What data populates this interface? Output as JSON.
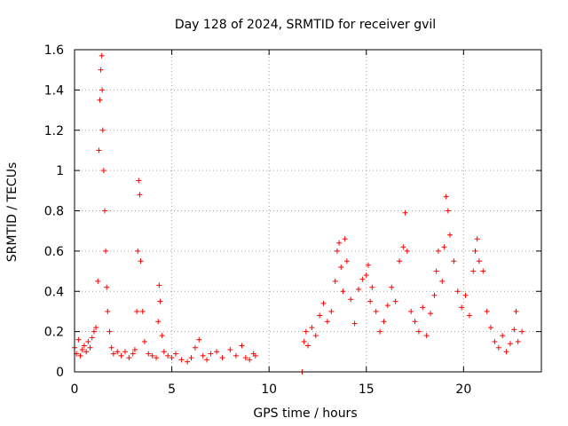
{
  "chart_data": {
    "type": "scatter",
    "title": "Day 128 of 2024, SRMTID for receiver gvil",
    "xlabel": "GPS time / hours",
    "ylabel": "SRMTID / TECUs",
    "xlim": [
      0,
      24
    ],
    "ylim": [
      0,
      1.6
    ],
    "xticks": [
      0,
      5,
      10,
      15,
      20
    ],
    "xtick_labels": [
      "0",
      "5",
      "10",
      "15",
      "20"
    ],
    "yticks": [
      0,
      0.2,
      0.4,
      0.6,
      0.8,
      1,
      1.2,
      1.4,
      1.6
    ],
    "ytick_labels": [
      "0",
      "0.2",
      "0.4",
      "0.6",
      "0.8",
      "1",
      "1.2",
      "1.4",
      "1.6"
    ],
    "grid": true,
    "marker": "plus",
    "color": "#ff0000",
    "series": [
      {
        "name": "SRMTID",
        "x": [
          0.0,
          0.1,
          0.2,
          0.3,
          0.4,
          0.5,
          0.6,
          0.7,
          0.8,
          0.9,
          1.0,
          1.1,
          1.2,
          1.25,
          1.3,
          1.35,
          1.4,
          1.42,
          1.45,
          1.5,
          1.55,
          1.6,
          1.65,
          1.7,
          1.8,
          1.9,
          2.0,
          2.2,
          2.4,
          2.6,
          2.8,
          3.0,
          3.1,
          3.2,
          3.25,
          3.3,
          3.35,
          3.4,
          3.5,
          3.6,
          3.8,
          4.0,
          4.2,
          4.3,
          4.35,
          4.4,
          4.5,
          4.6,
          4.8,
          5.0,
          5.2,
          5.5,
          5.8,
          6.0,
          6.2,
          6.4,
          6.6,
          6.8,
          7.0,
          7.3,
          7.6,
          8.0,
          8.3,
          8.6,
          8.8,
          9.0,
          9.2,
          9.3,
          11.7,
          11.8,
          11.9,
          12.0,
          12.2,
          12.4,
          12.6,
          12.8,
          13.0,
          13.2,
          13.4,
          13.5,
          13.6,
          13.7,
          13.8,
          13.9,
          14.0,
          14.2,
          14.4,
          14.6,
          14.8,
          15.0,
          15.1,
          15.2,
          15.3,
          15.5,
          15.7,
          15.9,
          16.1,
          16.3,
          16.5,
          16.7,
          16.9,
          17.0,
          17.1,
          17.3,
          17.5,
          17.7,
          17.9,
          18.1,
          18.3,
          18.5,
          18.6,
          18.7,
          18.9,
          19.0,
          19.1,
          19.2,
          19.3,
          19.5,
          19.7,
          19.9,
          20.1,
          20.3,
          20.5,
          20.6,
          20.7,
          20.8,
          21.0,
          21.2,
          21.4,
          21.6,
          21.8,
          22.0,
          22.2,
          22.4,
          22.6,
          22.7,
          22.8,
          23.0
        ],
        "y": [
          0.12,
          0.09,
          0.16,
          0.08,
          0.11,
          0.13,
          0.1,
          0.15,
          0.12,
          0.17,
          0.2,
          0.22,
          0.45,
          1.1,
          1.35,
          1.5,
          1.57,
          1.4,
          1.2,
          1.0,
          0.8,
          0.6,
          0.42,
          0.3,
          0.2,
          0.12,
          0.09,
          0.1,
          0.08,
          0.1,
          0.07,
          0.09,
          0.11,
          0.3,
          0.6,
          0.95,
          0.88,
          0.55,
          0.3,
          0.15,
          0.09,
          0.08,
          0.07,
          0.25,
          0.43,
          0.35,
          0.18,
          0.1,
          0.08,
          0.07,
          0.09,
          0.06,
          0.05,
          0.07,
          0.12,
          0.16,
          0.08,
          0.06,
          0.09,
          0.1,
          0.07,
          0.11,
          0.08,
          0.13,
          0.07,
          0.06,
          0.09,
          0.08,
          0.0,
          0.15,
          0.2,
          0.13,
          0.22,
          0.18,
          0.28,
          0.34,
          0.25,
          0.3,
          0.45,
          0.6,
          0.64,
          0.52,
          0.4,
          0.66,
          0.55,
          0.36,
          0.24,
          0.41,
          0.46,
          0.48,
          0.53,
          0.35,
          0.42,
          0.3,
          0.2,
          0.25,
          0.33,
          0.42,
          0.35,
          0.55,
          0.62,
          0.79,
          0.6,
          0.3,
          0.25,
          0.2,
          0.32,
          0.18,
          0.29,
          0.38,
          0.5,
          0.6,
          0.45,
          0.62,
          0.87,
          0.8,
          0.68,
          0.55,
          0.4,
          0.32,
          0.38,
          0.28,
          0.5,
          0.6,
          0.66,
          0.55,
          0.5,
          0.3,
          0.22,
          0.15,
          0.12,
          0.18,
          0.1,
          0.14,
          0.21,
          0.3,
          0.15,
          0.2
        ]
      }
    ]
  }
}
